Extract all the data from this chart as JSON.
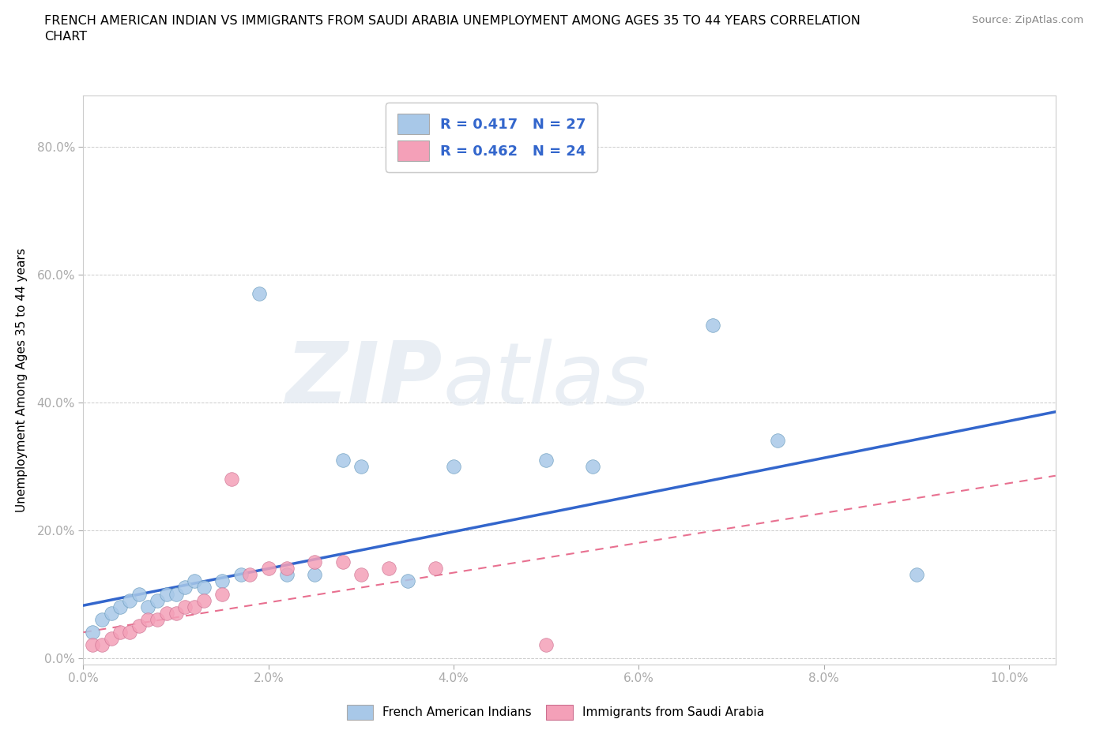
{
  "title_line1": "FRENCH AMERICAN INDIAN VS IMMIGRANTS FROM SAUDI ARABIA UNEMPLOYMENT AMONG AGES 35 TO 44 YEARS CORRELATION",
  "title_line2": "CHART",
  "source": "Source: ZipAtlas.com",
  "ylabel": "Unemployment Among Ages 35 to 44 years",
  "xlim": [
    0.0,
    0.105
  ],
  "ylim": [
    -0.01,
    0.88
  ],
  "xtick_vals": [
    0.0,
    0.02,
    0.04,
    0.06,
    0.08,
    0.1
  ],
  "xtick_labels": [
    "0.0%",
    "2.0%",
    "4.0%",
    "6.0%",
    "8.0%",
    "10.0%"
  ],
  "ytick_vals": [
    0.0,
    0.2,
    0.4,
    0.6,
    0.8
  ],
  "ytick_labels": [
    "0.0%",
    "20.0%",
    "40.0%",
    "60.0%",
    "80.0%"
  ],
  "blue_color": "#a8c8e8",
  "pink_color": "#f4a0b8",
  "blue_line_color": "#3366cc",
  "pink_line_color": "#e87090",
  "tick_color": "#4488cc",
  "blue_x": [
    0.001,
    0.002,
    0.003,
    0.004,
    0.005,
    0.006,
    0.007,
    0.008,
    0.009,
    0.01,
    0.011,
    0.012,
    0.013,
    0.015,
    0.017,
    0.019,
    0.022,
    0.025,
    0.028,
    0.03,
    0.035,
    0.04,
    0.05,
    0.055,
    0.068,
    0.075,
    0.09
  ],
  "blue_y": [
    0.04,
    0.06,
    0.07,
    0.08,
    0.09,
    0.1,
    0.08,
    0.09,
    0.1,
    0.1,
    0.11,
    0.12,
    0.11,
    0.12,
    0.13,
    0.57,
    0.13,
    0.13,
    0.31,
    0.3,
    0.12,
    0.3,
    0.31,
    0.3,
    0.52,
    0.34,
    0.13
  ],
  "pink_x": [
    0.001,
    0.002,
    0.003,
    0.004,
    0.005,
    0.006,
    0.007,
    0.008,
    0.009,
    0.01,
    0.011,
    0.012,
    0.013,
    0.015,
    0.016,
    0.018,
    0.02,
    0.022,
    0.025,
    0.028,
    0.03,
    0.033,
    0.038,
    0.05
  ],
  "pink_y": [
    0.02,
    0.02,
    0.03,
    0.04,
    0.04,
    0.05,
    0.06,
    0.06,
    0.07,
    0.07,
    0.08,
    0.08,
    0.09,
    0.1,
    0.28,
    0.13,
    0.14,
    0.14,
    0.15,
    0.15,
    0.13,
    0.14,
    0.14,
    0.02
  ],
  "blue_line_x0": 0.0,
  "blue_line_y0": 0.082,
  "blue_line_x1": 0.105,
  "blue_line_y1": 0.385,
  "pink_line_x0": 0.0,
  "pink_line_y0": 0.04,
  "pink_line_x1": 0.105,
  "pink_line_y1": 0.285
}
